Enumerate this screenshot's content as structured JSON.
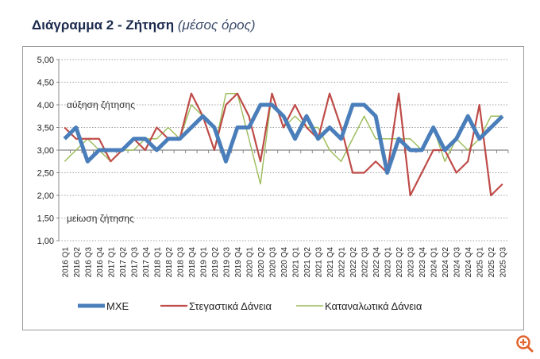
{
  "title": {
    "main": "Διάγραμμα 2 - Ζήτηση",
    "sub": "(μέσος όρος)"
  },
  "chart_data": {
    "type": "line",
    "title": "",
    "xlabel": "",
    "ylabel": "",
    "ylim": [
      1.0,
      5.0
    ],
    "yticks": [
      "1,00",
      "1,50",
      "2,00",
      "2,50",
      "3,00",
      "3,50",
      "4,00",
      "4,50",
      "5,00"
    ],
    "grid": true,
    "legend": "bottom",
    "annotations": [
      "αύξηση ζήτησης",
      "μείωση ζήτησης"
    ],
    "categories": [
      "2016 Q1",
      "2016 Q2",
      "2016 Q3",
      "2016 Q4",
      "2017 Q1",
      "2017 Q2",
      "2017 Q3",
      "2017 Q4",
      "2018 Q1",
      "2018 Q2",
      "2018 Q3",
      "2018 Q4",
      "2019 Q1",
      "2019 Q2",
      "2019 Q3",
      "2019 Q4",
      "2020 Q1",
      "2020 Q2",
      "2020 Q3",
      "2020 Q4",
      "2021 Q1",
      "2021 Q2",
      "2021 Q3",
      "2021 Q4",
      "2022 Q1",
      "2022 Q2",
      "2022 Q3",
      "2022 Q4",
      "2023 Q1",
      "2023 Q2",
      "2023 Q3",
      "2023 Q4",
      "2024 Q1",
      "2024 Q2",
      "2024 Q3",
      "2024 Q4",
      "2025 Q1",
      "2025 Q2",
      "2025 Q3"
    ],
    "series": [
      {
        "name": "ΜΧΕ",
        "color": "#4a7ebb",
        "values": [
          3.25,
          3.5,
          2.75,
          3.0,
          3.0,
          3.0,
          3.25,
          3.25,
          3.0,
          3.25,
          3.25,
          3.5,
          3.75,
          3.5,
          2.75,
          3.5,
          3.5,
          4.0,
          4.0,
          3.75,
          3.25,
          3.75,
          3.25,
          3.5,
          3.25,
          4.0,
          4.0,
          3.75,
          2.5,
          3.25,
          3.0,
          3.0,
          3.5,
          3.0,
          3.25,
          3.75,
          3.25,
          3.5,
          3.75
        ]
      },
      {
        "name": "Στεγαστικά Δάνεια",
        "color": "#be4b48",
        "values": [
          3.5,
          3.25,
          3.25,
          3.25,
          2.75,
          3.0,
          3.25,
          3.0,
          3.5,
          3.25,
          3.25,
          4.25,
          3.75,
          3.0,
          4.0,
          4.25,
          3.75,
          2.75,
          4.25,
          3.5,
          4.0,
          3.5,
          3.25,
          4.25,
          3.5,
          2.5,
          2.5,
          2.75,
          2.5,
          4.25,
          2.0,
          2.5,
          3.0,
          3.0,
          2.5,
          2.75,
          4.0,
          2.0,
          2.25
        ]
      },
      {
        "name": "Καταναλωτικά Δάνεια",
        "color": "#9bbb59",
        "values": [
          2.75,
          3.0,
          3.25,
          3.0,
          2.75,
          3.0,
          3.0,
          3.25,
          3.25,
          3.5,
          3.25,
          4.0,
          3.75,
          3.0,
          4.25,
          4.25,
          3.25,
          2.25,
          4.25,
          3.5,
          3.75,
          3.5,
          3.5,
          3.0,
          2.75,
          3.25,
          3.75,
          3.25,
          3.25,
          3.25,
          3.25,
          3.0,
          3.5,
          2.75,
          3.25,
          3.0,
          3.25,
          3.75,
          3.75
        ]
      }
    ]
  },
  "icons": {
    "zoom": "zoom-in-icon",
    "zoom_color": "#e2642f"
  }
}
